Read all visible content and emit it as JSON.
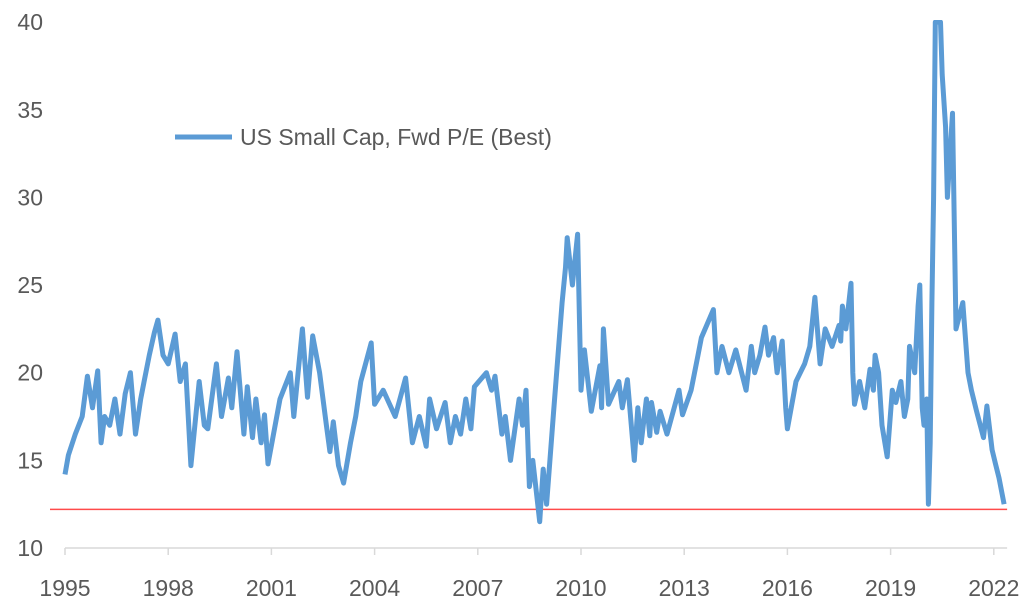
{
  "chart_data": {
    "type": "line",
    "title": "",
    "xlabel": "",
    "ylabel": "",
    "xlim": [
      1995,
      2022.3
    ],
    "ylim": [
      10,
      40
    ],
    "grid": false,
    "legend_position": "top-left",
    "x_ticks": [
      "1995",
      "1998",
      "2001",
      "2004",
      "2007",
      "2010",
      "2013",
      "2016",
      "2019",
      "2022"
    ],
    "y_ticks": [
      "10",
      "15",
      "20",
      "25",
      "30",
      "35",
      "40"
    ],
    "reference_line": {
      "value": 12.2,
      "color": "#ff4b4b"
    },
    "series": [
      {
        "name": "US Small Cap, Fwd P/E (Best)",
        "color": "#5b9bd5",
        "x": [
          1995.0,
          1995.1,
          1995.3,
          1995.5,
          1995.65,
          1995.8,
          1995.95,
          1996.05,
          1996.15,
          1996.3,
          1996.45,
          1996.6,
          1996.75,
          1996.9,
          1997.05,
          1997.2,
          1997.3,
          1997.45,
          1997.6,
          1997.7,
          1997.85,
          1998.0,
          1998.2,
          1998.35,
          1998.5,
          1998.66,
          1998.9,
          1999.05,
          1999.15,
          1999.4,
          1999.55,
          1999.75,
          1999.85,
          2000.0,
          2000.2,
          2000.3,
          2000.45,
          2000.55,
          2000.7,
          2000.8,
          2000.9,
          2001.25,
          2001.55,
          2001.65,
          2001.9,
          2002.05,
          2002.2,
          2002.4,
          2002.6,
          2002.7,
          2002.8,
          2002.95,
          2003.1,
          2003.3,
          2003.45,
          2003.6,
          2003.9,
          2004.0,
          2004.25,
          2004.6,
          2004.9,
          2005.1,
          2005.3,
          2005.5,
          2005.6,
          2005.8,
          2006.05,
          2006.2,
          2006.35,
          2006.5,
          2006.65,
          2006.8,
          2006.9,
          2007.25,
          2007.4,
          2007.5,
          2007.7,
          2007.8,
          2007.95,
          2008.2,
          2008.3,
          2008.4,
          2008.5,
          2008.6,
          2008.8,
          2008.9,
          2009.0,
          2009.2,
          2009.45,
          2009.55,
          2009.6,
          2009.75,
          2009.9,
          2010.0,
          2010.1,
          2010.3,
          2010.55,
          2010.6,
          2010.65,
          2010.8,
          2011.1,
          2011.2,
          2011.35,
          2011.55,
          2011.65,
          2011.75,
          2011.9,
          2012.0,
          2012.05,
          2012.2,
          2012.3,
          2012.5,
          2012.85,
          2012.95,
          2013.2,
          2013.4,
          2013.5,
          2013.85,
          2013.95,
          2014.1,
          2014.3,
          2014.5,
          2014.8,
          2014.95,
          2015.05,
          2015.2,
          2015.35,
          2015.45,
          2015.6,
          2015.7,
          2015.85,
          2015.95,
          2016.0,
          2016.25,
          2016.5,
          2016.65,
          2016.8,
          2016.95,
          2017.1,
          2017.3,
          2017.5,
          2017.55,
          2017.6,
          2017.7,
          2017.85,
          2017.9,
          2017.95,
          2018.1,
          2018.25,
          2018.4,
          2018.5,
          2018.55,
          2018.65,
          2018.75,
          2018.9,
          2019.05,
          2019.15,
          2019.3,
          2019.4,
          2019.5,
          2019.55,
          2019.7,
          2019.8,
          2019.85,
          2019.92,
          2019.97,
          2020.05,
          2020.1,
          2020.15,
          2020.2,
          2020.25,
          2020.3,
          2020.45,
          2020.5,
          2020.6,
          2020.65,
          2020.8,
          2020.9,
          2021.1,
          2021.25,
          2021.35,
          2021.5,
          2021.7,
          2021.8,
          2021.95,
          2022.05,
          2022.15,
          2022.3
        ],
        "y": [
          14.2,
          15.3,
          16.5,
          17.5,
          19.8,
          18.0,
          20.1,
          16.0,
          17.5,
          17.0,
          18.5,
          16.5,
          18.8,
          20.0,
          16.5,
          18.5,
          19.5,
          21.0,
          22.3,
          23.0,
          21.0,
          20.5,
          22.2,
          19.5,
          20.5,
          14.7,
          19.5,
          17.0,
          16.8,
          20.5,
          17.5,
          19.7,
          18.0,
          21.2,
          16.5,
          19.2,
          16.3,
          18.5,
          16.0,
          17.6,
          14.8,
          18.5,
          20.0,
          17.5,
          22.5,
          18.6,
          22.1,
          20.0,
          17.0,
          15.5,
          17.2,
          14.7,
          13.7,
          16.0,
          17.5,
          19.5,
          21.7,
          18.2,
          19.0,
          17.5,
          19.7,
          16.0,
          17.5,
          15.8,
          18.5,
          16.8,
          18.3,
          16.0,
          17.5,
          16.5,
          18.5,
          16.8,
          19.2,
          20.0,
          19.0,
          19.8,
          16.5,
          17.5,
          15.0,
          18.5,
          17.0,
          19.0,
          13.5,
          15.0,
          11.5,
          14.5,
          12.5,
          17.7,
          24.0,
          26.0,
          27.7,
          25.0,
          27.9,
          19.0,
          21.3,
          17.8,
          20.4,
          18.0,
          22.5,
          18.2,
          19.5,
          18.0,
          19.6,
          15.0,
          18.0,
          16.0,
          18.5,
          16.4,
          18.3,
          16.6,
          17.8,
          16.5,
          19.0,
          17.6,
          19.0,
          21.0,
          22.0,
          23.6,
          20.0,
          21.5,
          20.0,
          21.3,
          19.0,
          21.5,
          20.0,
          21.0,
          22.6,
          21.0,
          22.0,
          20.0,
          21.8,
          18.0,
          16.8,
          19.5,
          20.5,
          21.5,
          24.3,
          20.5,
          22.5,
          21.5,
          22.7,
          21.8,
          23.8,
          22.5,
          25.1,
          20.0,
          18.2,
          19.5,
          18.0,
          20.2,
          19.0,
          21.0,
          20.0,
          17.0,
          15.2,
          19.0,
          18.3,
          19.5,
          17.5,
          18.5,
          21.5,
          20.0,
          23.8,
          25.0,
          18.0,
          17.0,
          18.5,
          12.5,
          16.0,
          24.0,
          30.0,
          40.0,
          40.0,
          37.0,
          34.0,
          30.0,
          34.8,
          22.5,
          24.0,
          20.0,
          19.0,
          17.8,
          16.3,
          18.1,
          15.6,
          14.8,
          14.0,
          12.5
        ]
      }
    ]
  }
}
